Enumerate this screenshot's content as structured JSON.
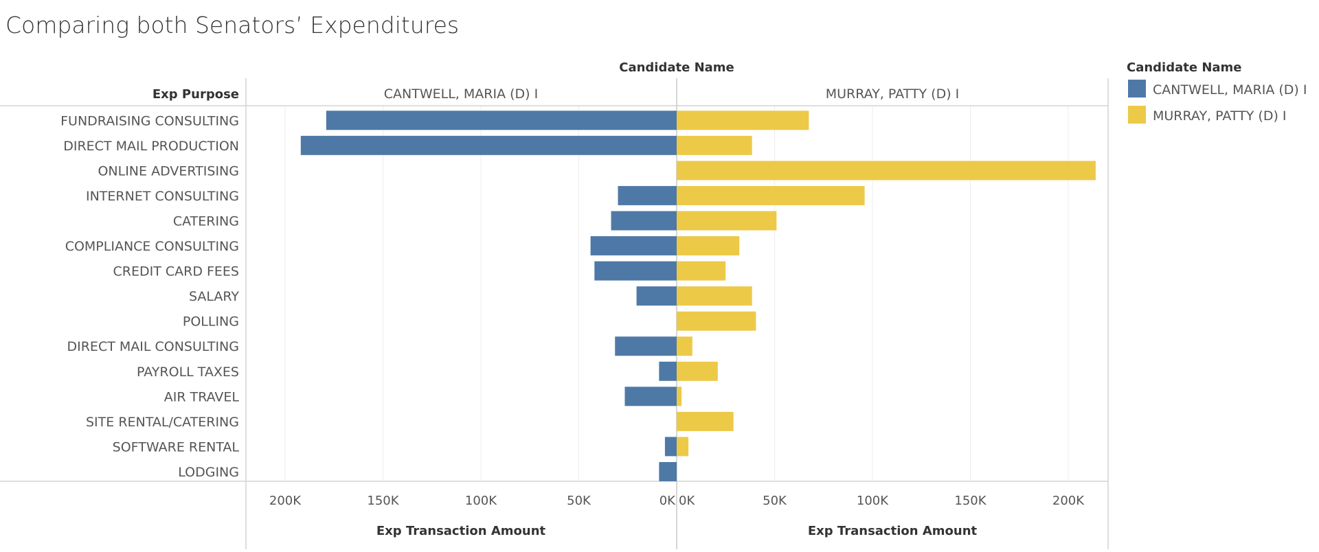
{
  "title": "Comparing both Senators’ Expenditures",
  "chart_data": {
    "type": "bar",
    "orientation": "horizontal",
    "layout": "butterfly",
    "column_header": "Candidate Name",
    "row_header": "Exp Purpose",
    "xlabel": "Exp Transaction Amount",
    "xlim": [
      0,
      220000
    ],
    "x_ticks": [
      "200K",
      "150K",
      "100K",
      "50K",
      "0K"
    ],
    "x_tick_values": [
      200000,
      150000,
      100000,
      50000,
      0
    ],
    "x_ticks_right": [
      "0K",
      "50K",
      "100K",
      "150K",
      "200K"
    ],
    "grid": true,
    "legend": {
      "title": "Candidate Name",
      "position": "right"
    },
    "categories": [
      "FUNDRAISING CONSULTING",
      "DIRECT MAIL PRODUCTION",
      "ONLINE ADVERTISING",
      "INTERNET CONSULTING",
      "CATERING",
      "COMPLIANCE CONSULTING",
      "CREDIT CARD FEES",
      "SALARY",
      "POLLING",
      "DIRECT MAIL CONSULTING",
      "PAYROLL TAXES",
      "AIR TRAVEL",
      "SITE RENTAL/CATERING",
      "SOFTWARE RENTAL",
      "LODGING"
    ],
    "series": [
      {
        "name": "CANTWELL, MARIA (D) I",
        "color": "#4e79a7",
        "values": [
          179000,
          192000,
          0,
          30000,
          33500,
          44000,
          42000,
          20500,
          0,
          31500,
          9000,
          26500,
          0,
          6000,
          9000
        ]
      },
      {
        "name": "MURRAY, PATTY (D) I",
        "color": "#edc948",
        "values": [
          67500,
          38500,
          214000,
          96000,
          51000,
          32000,
          25000,
          38500,
          40500,
          8000,
          21000,
          2500,
          29000,
          6000,
          0
        ]
      }
    ]
  }
}
